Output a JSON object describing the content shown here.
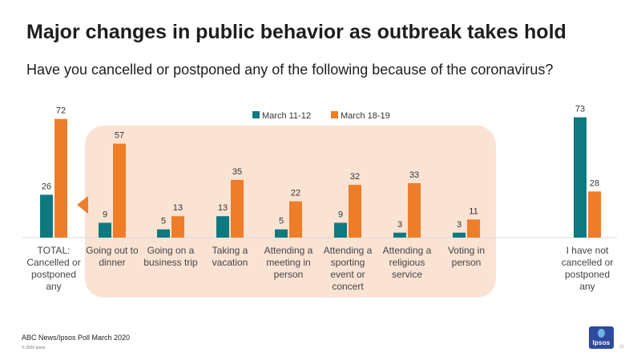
{
  "header": {
    "title": "Major changes in public behavior as outbreak takes hold",
    "subtitle": "Have you cancelled or postponed any of the following because of the coronavirus?"
  },
  "footer": {
    "source": "ABC News/Ipsos Poll March 2020",
    "copyright": "© 2020 Ipsos",
    "page_number": "12",
    "logo_text": "Ipsos"
  },
  "colors": {
    "march_11_12": "#0e7a80",
    "march_18_19": "#ee7d2a",
    "highlight_box": "#fbe3d4"
  },
  "chart_data": {
    "type": "bar",
    "categories": [
      [
        "TOTAL:",
        "Cancelled or",
        "postponed",
        "any"
      ],
      [
        "Going out to",
        "dinner"
      ],
      [
        "Going on a",
        "business trip"
      ],
      [
        "Taking a",
        "vacation"
      ],
      [
        "Attending a",
        "meeting in",
        "person"
      ],
      [
        "Attending a",
        "sporting",
        "event or",
        "concert"
      ],
      [
        "Attending a",
        "religious",
        "service"
      ],
      [
        "Voting in",
        "person"
      ],
      [
        "I have not",
        "cancelled or",
        "postponed",
        "any"
      ]
    ],
    "series": [
      {
        "name": "March 11-12",
        "values": [
          26,
          9,
          5,
          13,
          5,
          9,
          3,
          3,
          73
        ]
      },
      {
        "name": "March 18-19",
        "values": [
          72,
          57,
          13,
          35,
          22,
          32,
          33,
          11,
          28
        ]
      }
    ],
    "legend_position": "top-center",
    "grid": false,
    "ylim": [
      0,
      80
    ]
  }
}
